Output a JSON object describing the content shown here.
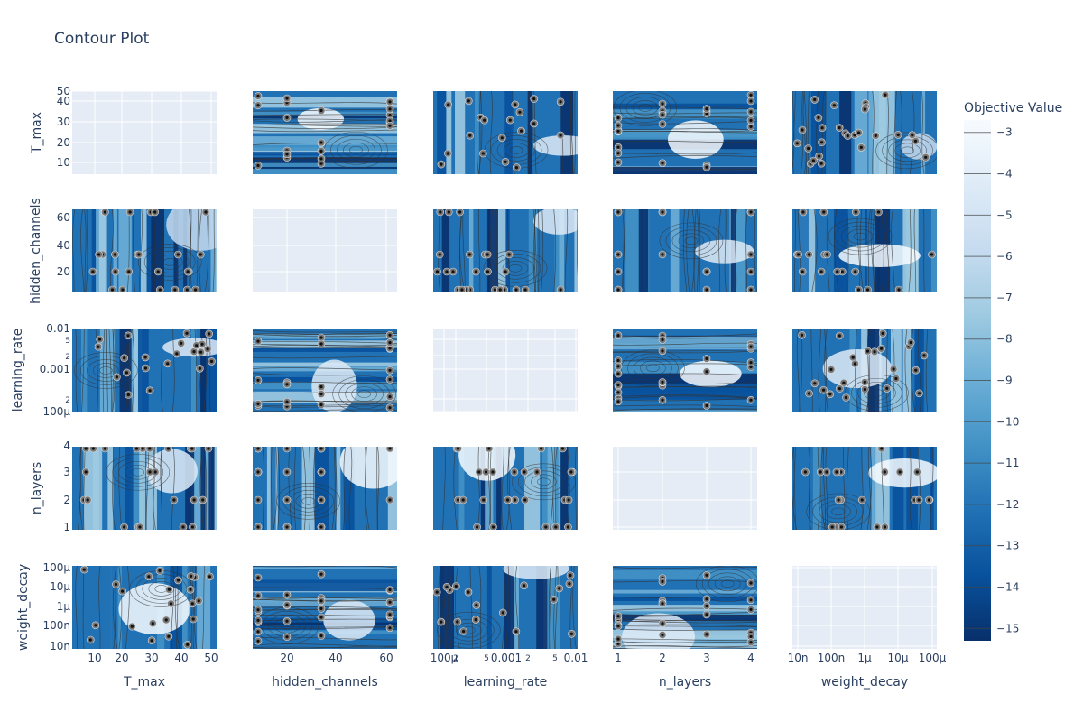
{
  "chart_data": {
    "type": "contour",
    "title": "Contour Plot",
    "params": [
      "T_max",
      "hidden_channels",
      "learning_rate",
      "n_layers",
      "weight_decay"
    ],
    "ticks": {
      "T_max": [
        "10",
        "20",
        "30",
        "40",
        "50"
      ],
      "hidden_channels": [
        "20",
        "40",
        "60"
      ],
      "learning_rate": [
        "100µ",
        "2",
        "5",
        "0.001",
        "2",
        "5",
        "0.01"
      ],
      "n_layers": [
        "1",
        "2",
        "3",
        "4"
      ],
      "weight_decay": [
        "10n",
        "100n",
        "1µ",
        "10µ",
        "100µ"
      ]
    },
    "colorbar": {
      "title": "Objective Value",
      "range": [
        -15.3,
        -2.7
      ],
      "ticks": [
        "−3",
        "−4",
        "−5",
        "−6",
        "−7",
        "−8",
        "−9",
        "−10",
        "−11",
        "−12",
        "−13",
        "−14",
        "−15"
      ],
      "colorscale": "Blues",
      "colors": [
        "#08306b",
        "#08519c",
        "#2171b5",
        "#4292c6",
        "#6baed6",
        "#9ecae1",
        "#c6dbef",
        "#deebf7",
        "#f7fbff"
      ]
    },
    "colors": {
      "empty_panel": "#e5ecf6",
      "grid": "#ffffff",
      "marker": "#777777",
      "marker_center": "#111111"
    }
  }
}
